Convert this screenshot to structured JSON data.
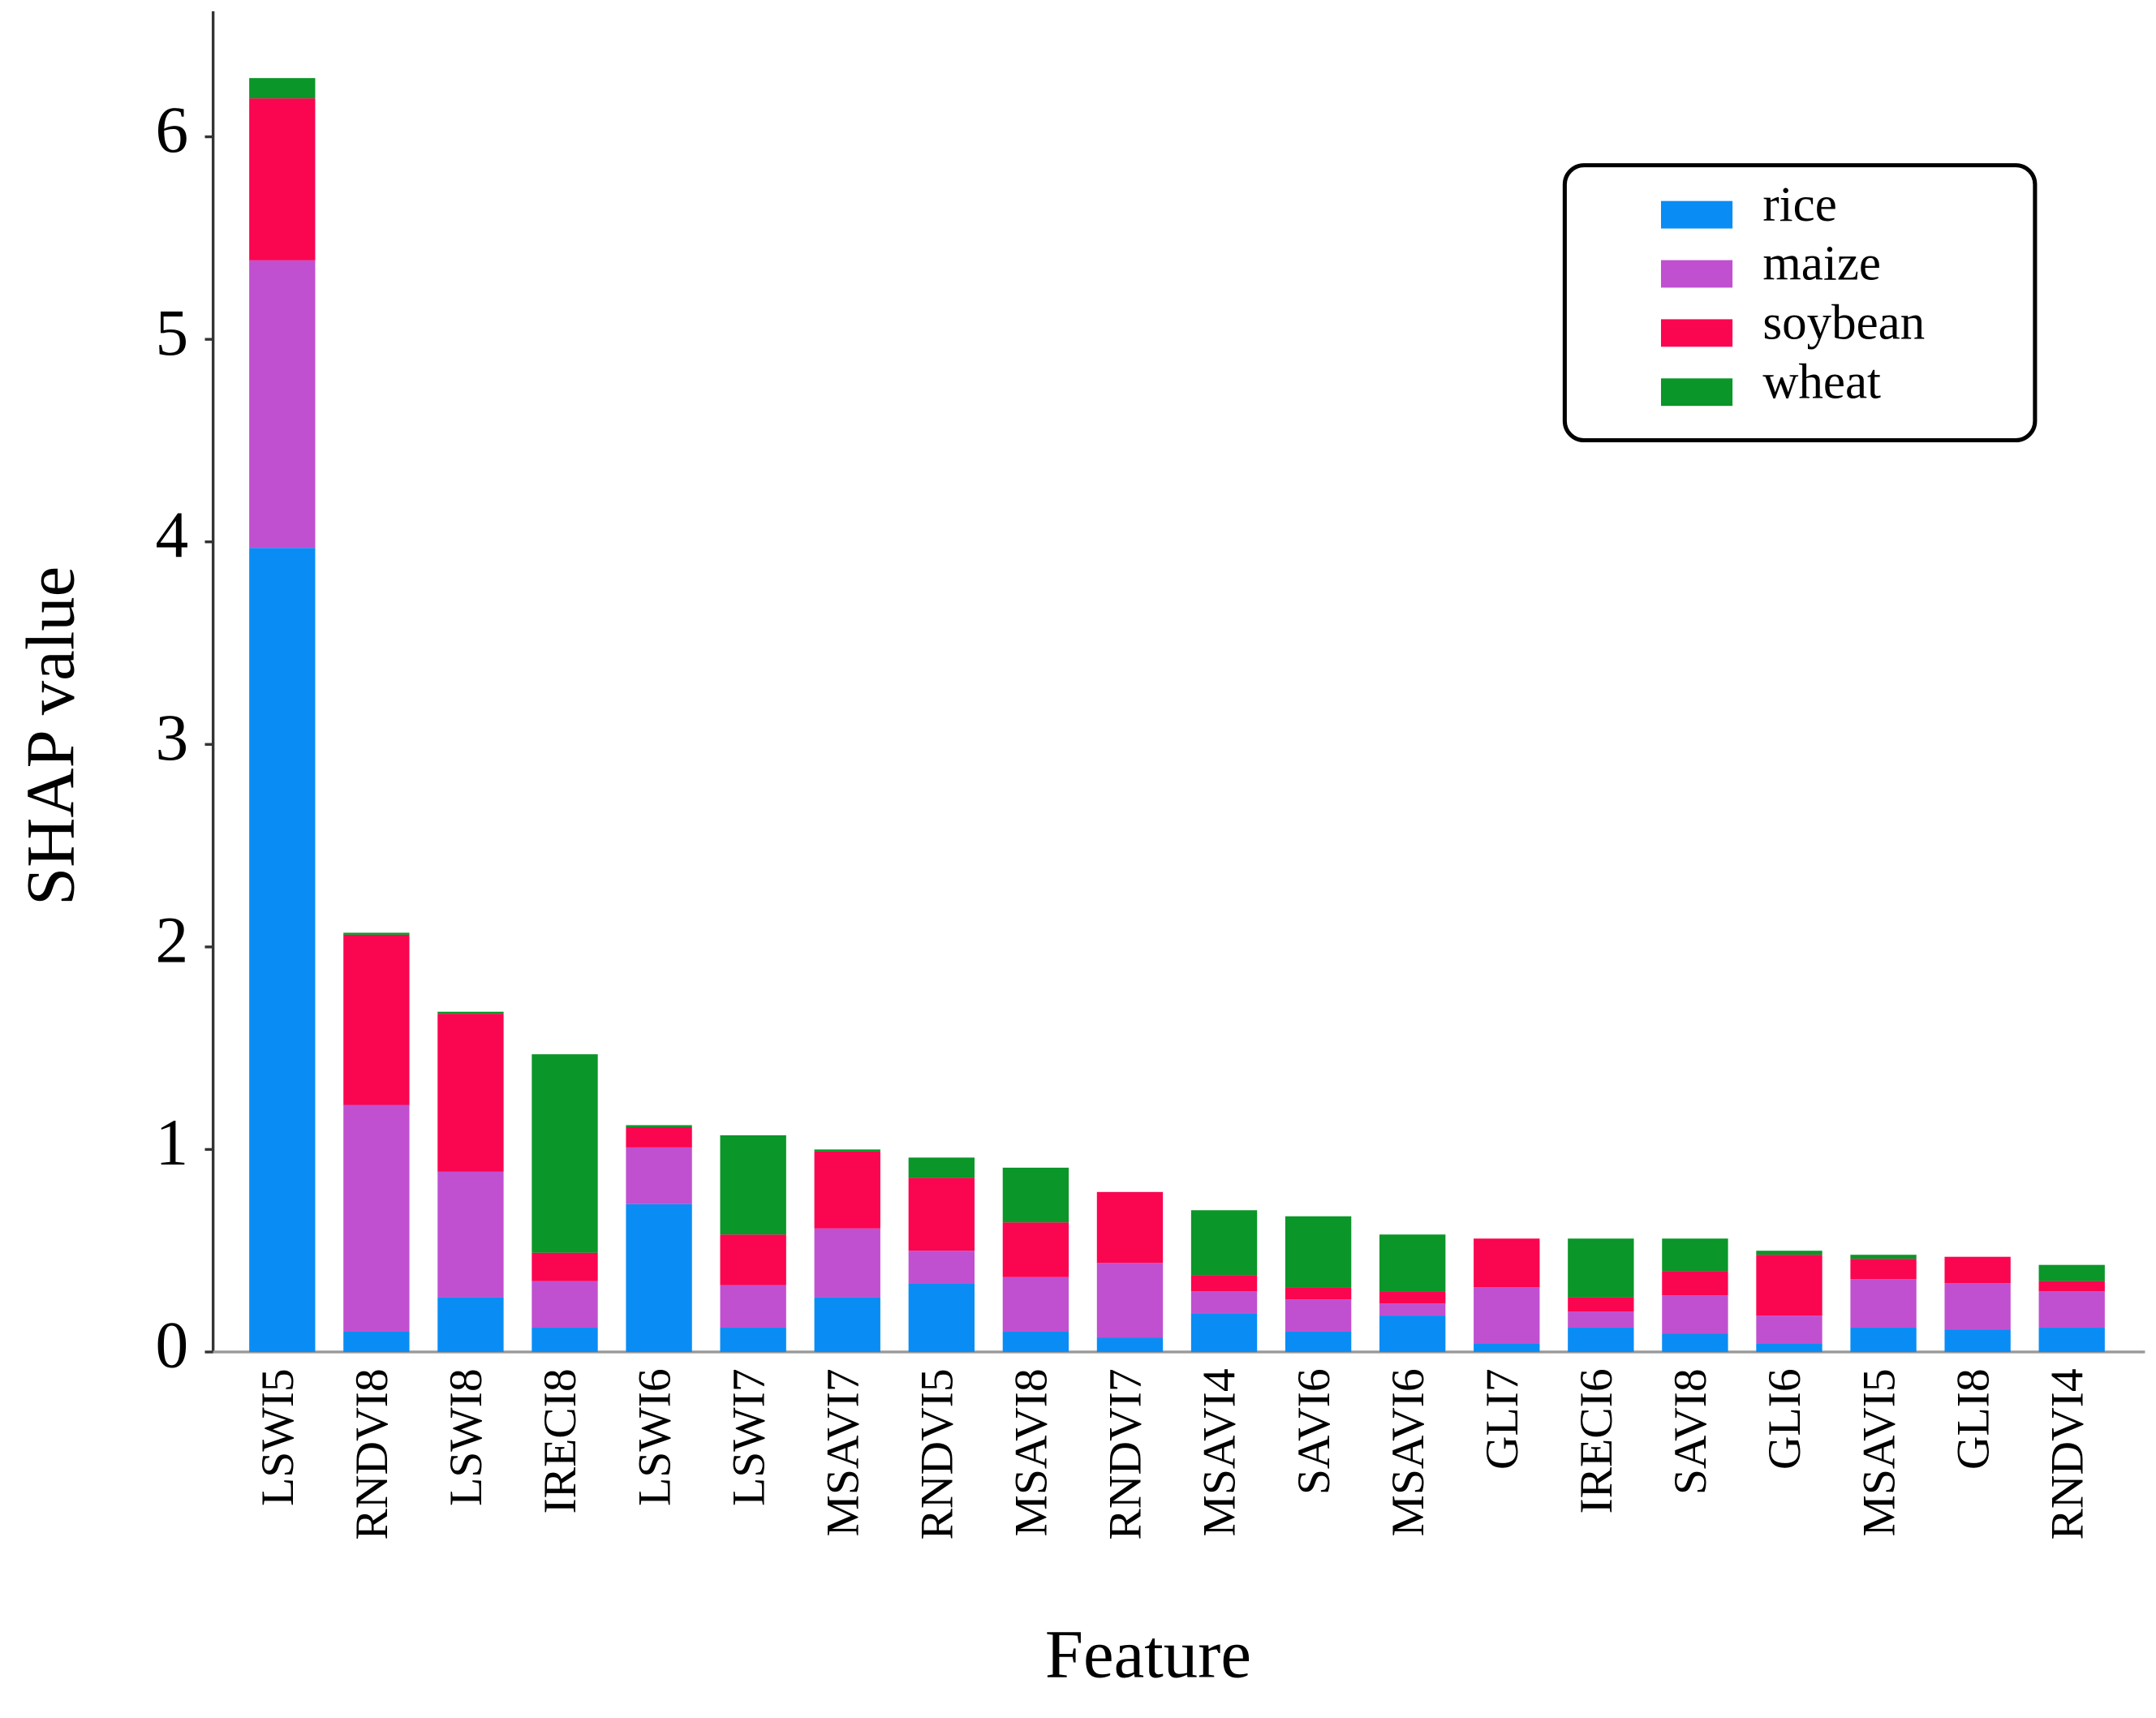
{
  "chart_data": {
    "type": "stacked-bar",
    "x_label": "Feature",
    "y_label": "SHAP value",
    "categories": [
      "LSWI5",
      "RNDVI8",
      "LSWI8",
      "IRECI8",
      "LSWI6",
      "LSWI7",
      "MSAVI7",
      "RNDVI5",
      "MSAVI8",
      "RNDVI7",
      "MSAVI4",
      "SAVI6",
      "MSAVI6",
      "GLI7",
      "IRECI6",
      "SAVI8",
      "GLI6",
      "MSAVI5",
      "GLI8",
      "RNDVI4"
    ],
    "series": [
      {
        "name": "rice",
        "color": "#0a8cf5",
        "values": [
          3.97,
          0.1,
          0.27,
          0.12,
          0.73,
          0.12,
          0.27,
          0.34,
          0.1,
          0.07,
          0.19,
          0.1,
          0.18,
          0.04,
          0.12,
          0.09,
          0.04,
          0.12,
          0.11,
          0.12
        ]
      },
      {
        "name": "maize",
        "color": "#c050d0",
        "values": [
          1.42,
          1.12,
          0.62,
          0.23,
          0.28,
          0.21,
          0.34,
          0.16,
          0.27,
          0.37,
          0.11,
          0.16,
          0.06,
          0.28,
          0.08,
          0.19,
          0.14,
          0.24,
          0.23,
          0.18
        ]
      },
      {
        "name": "soybean",
        "color": "#fa0550",
        "values": [
          0.8,
          0.84,
          0.78,
          0.14,
          0.1,
          0.25,
          0.38,
          0.36,
          0.27,
          0.35,
          0.08,
          0.06,
          0.06,
          0.24,
          0.07,
          0.12,
          0.3,
          0.1,
          0.13,
          0.05
        ]
      },
      {
        "name": "wheat",
        "color": "#0a9628",
        "values": [
          0.1,
          0.01,
          0.01,
          0.98,
          0.01,
          0.49,
          0.01,
          0.1,
          0.27,
          0,
          0.32,
          0.35,
          0.28,
          0,
          0.29,
          0.16,
          0.02,
          0.02,
          0,
          0.08
        ]
      }
    ],
    "ylim": [
      0,
      6.62
    ],
    "yticks": [
      0,
      1,
      2,
      3,
      4,
      5,
      6
    ],
    "legend": "upper-right"
  }
}
